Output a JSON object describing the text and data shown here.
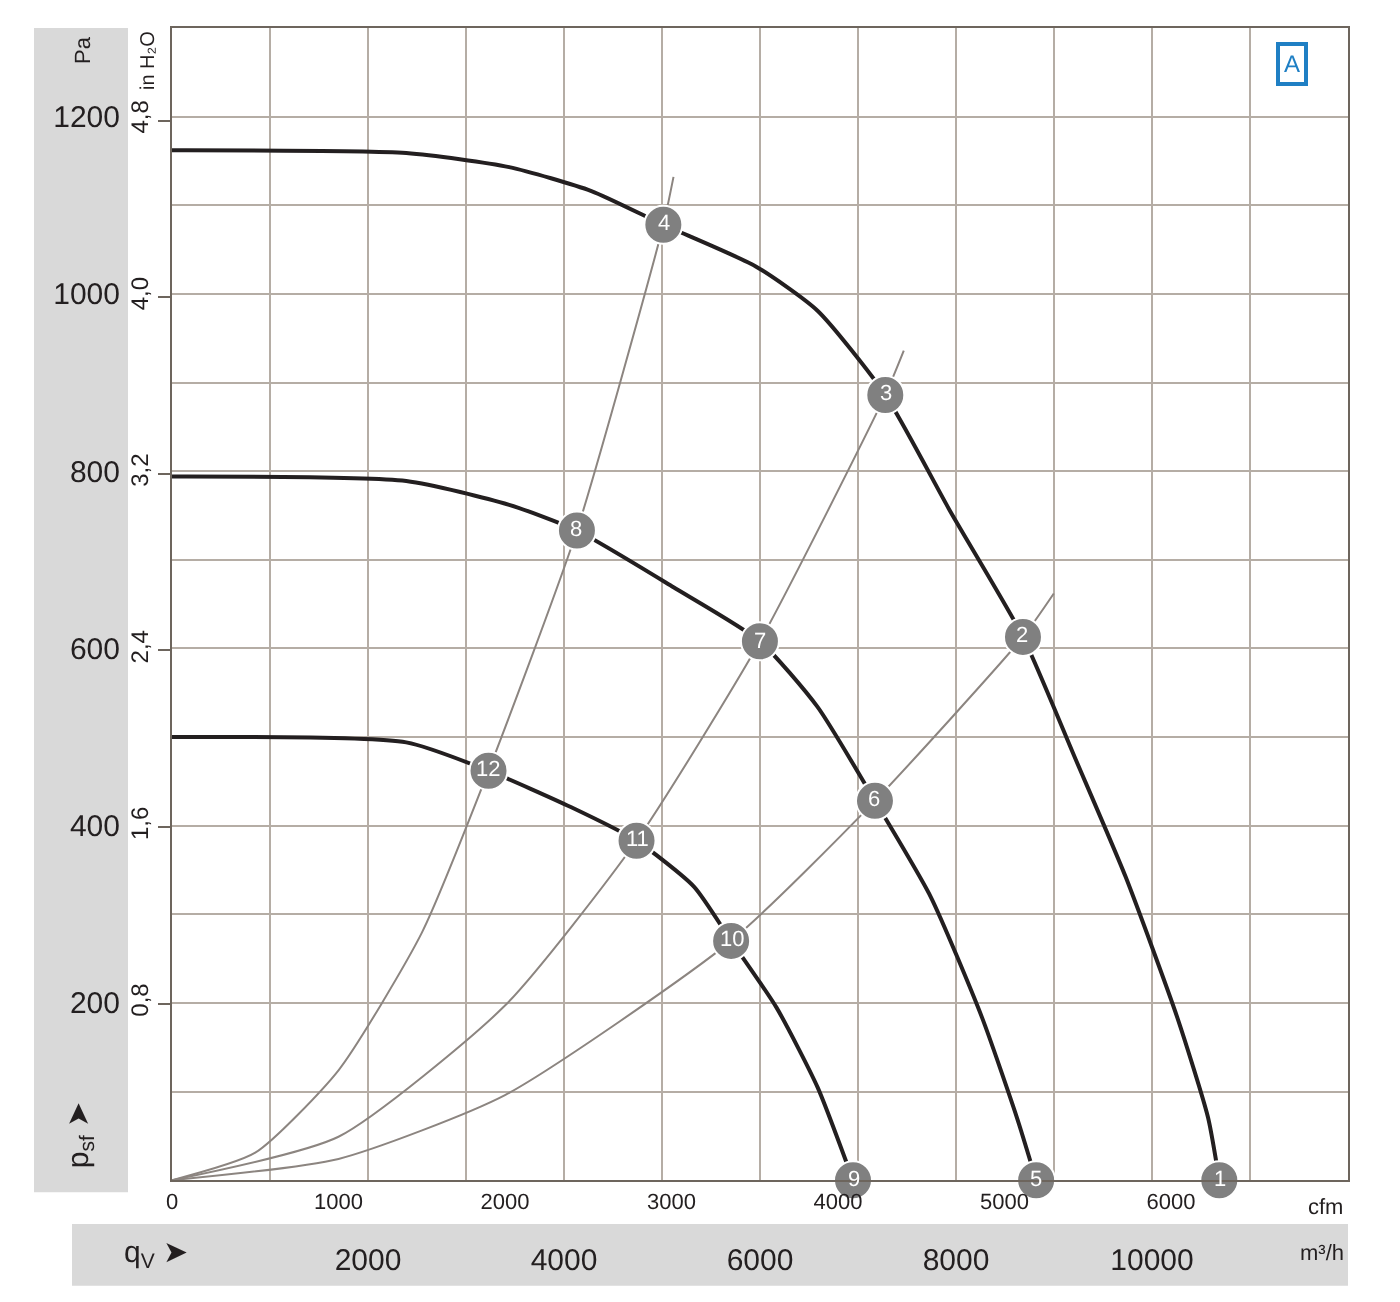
{
  "chart_data": {
    "type": "line",
    "series": [
      {
        "color": "#231f20",
        "x": [
          0,
          1407,
          2025,
          2519,
          2951,
          3506,
          3877,
          4284,
          4679,
          5111,
          5420,
          5728,
          6037,
          6222,
          6290
        ],
        "values": [
          1162,
          1159,
          1143,
          1116,
          1078,
          1031,
          981,
          886,
          753,
          613,
          478,
          342,
          184,
          71,
          0
        ]
      },
      {
        "color": "#231f20",
        "x": [
          0,
          1407,
          2025,
          2432,
          3012,
          3531,
          3877,
          4222,
          4556,
          4864,
          5074,
          5190
        ],
        "values": [
          794,
          789,
          762,
          733,
          669,
          608,
          534,
          428,
          320,
          184,
          71,
          0
        ]
      },
      {
        "color": "#231f20",
        "x": [
          0,
          1407,
          1901,
          2395,
          2790,
          3136,
          3358,
          3630,
          3877,
          4090
        ],
        "values": [
          500,
          494,
          462,
          421,
          383,
          331,
          270,
          195,
          105,
          0
        ]
      },
      {
        "color": "#8c8580",
        "x": [
          0,
          500,
          1000,
          1500,
          1901,
          2432,
          2951,
          3012
        ],
        "values": [
          0,
          31,
          124,
          279,
          462,
          733,
          1078,
          1132
        ]
      },
      {
        "color": "#8c8580",
        "x": [
          0,
          1000,
          2000,
          2790,
          3531,
          4284,
          4395
        ],
        "values": [
          0,
          49,
          197,
          383,
          608,
          886,
          936
        ]
      },
      {
        "color": "#8c8580",
        "x": [
          0,
          1000,
          2000,
          3358,
          4222,
          5111,
          5296
        ],
        "values": [
          0,
          24,
          96,
          270,
          428,
          613,
          662
        ]
      },
      {
        "type": "scatter",
        "color": "#808080",
        "marker": "circle",
        "x": [
          6290,
          5111,
          4284,
          2951,
          5190,
          4222,
          3531,
          2432,
          4090,
          3358,
          2790,
          1901
        ],
        "values": [
          0,
          613,
          886,
          1078,
          0,
          428,
          608,
          733,
          0,
          270,
          383,
          462
        ]
      }
    ],
    "xlim": [
      0,
      7063
    ],
    "xticks": [
      0,
      1000,
      2000,
      3000,
      4000,
      5000,
      6000
    ],
    "xlabel": "cfm",
    "x2lim": [
      0,
      12000
    ],
    "x2ticks": [
      2000,
      4000,
      6000,
      8000,
      10000
    ],
    "x2label": "m³/h",
    "ylim": [
      0,
      1300
    ],
    "yticks": [
      200,
      400,
      600,
      800,
      1000,
      1200
    ],
    "ylabel": "Pa",
    "y2lim": [
      0,
      5.219
    ],
    "y2ticks": [
      {
        "value": 0.8,
        "label": "0,8"
      },
      {
        "value": 1.6,
        "label": "1,6"
      },
      {
        "value": 2.4,
        "label": "2,4"
      },
      {
        "value": 3.2,
        "label": "3,2"
      },
      {
        "value": 4.0,
        "label": "4,0"
      },
      {
        "value": 4.8,
        "label": "4,8"
      }
    ],
    "y2label": "in H₂O",
    "grid": true,
    "annotations": [
      "p$_{sf}$ ➤",
      "q$_{V}$ ➤",
      "A",
      {
        "text": "1",
        "x": 6290,
        "y": 0
      },
      {
        "text": "2",
        "x": 5111,
        "y": 613
      },
      {
        "text": "3",
        "x": 4284,
        "y": 886
      },
      {
        "text": "4",
        "x": 2951,
        "y": 1078
      },
      {
        "text": "5",
        "x": 5190,
        "y": 0
      },
      {
        "text": "6",
        "x": 4222,
        "y": 428
      },
      {
        "text": "7",
        "x": 3531,
        "y": 608
      },
      {
        "text": "8",
        "x": 2432,
        "y": 733
      },
      {
        "text": "9",
        "x": 4090,
        "y": 0
      },
      {
        "text": "10",
        "x": 3358,
        "y": 270
      },
      {
        "text": "11",
        "x": 2790,
        "y": 383
      },
      {
        "text": "12",
        "x": 1901,
        "y": 462
      }
    ]
  }
}
